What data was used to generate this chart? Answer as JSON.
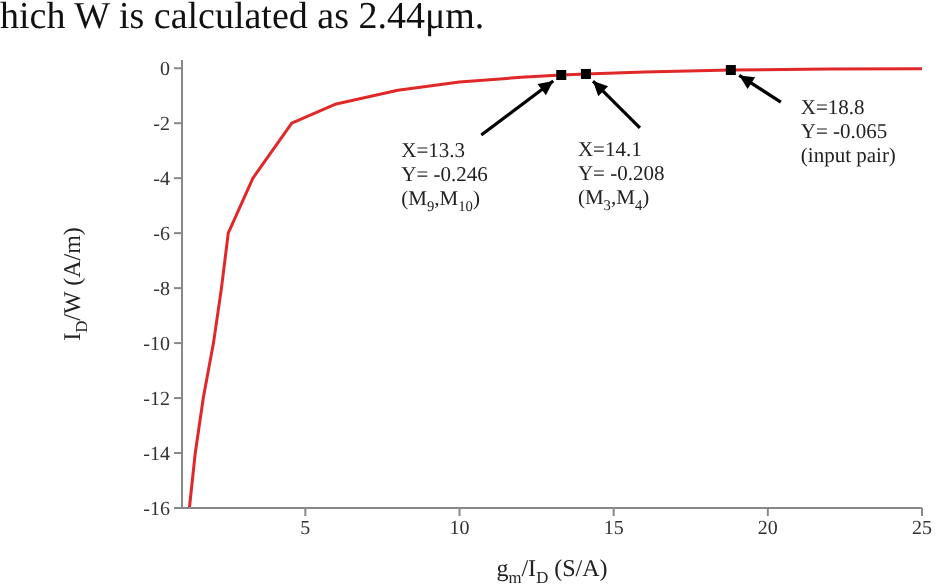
{
  "chart_data": {
    "type": "line",
    "xlabel": "g$_{m}$/I$_{D}$  (S/A)",
    "ylabel": "I$_{D}$/W  (A/m)",
    "annotations": [
      "hich W is calculated as 2.44μm.",
      {
        "text": "X=13.3\nY= -0.246\n(M$_{9}$,M$_{10}$)",
        "x": 13.3,
        "y": -0.246
      },
      {
        "text": "X=14.1\nY= -0.208\n(M$_{3}$,M$_{4}$)",
        "x": 14.1,
        "y": -0.208
      },
      {
        "text": "X=18.8\nY= -0.065\n(input pair)",
        "x": 18.8,
        "y": -0.065
      }
    ],
    "series": [
      {
        "color": "#e02828",
        "x": [
          1.24,
          1.43,
          1.69,
          2.02,
          2.28,
          2.5,
          3.3,
          4.56,
          6,
          8,
          10,
          12,
          13.3,
          14.1,
          16,
          18.8,
          22,
          25
        ],
        "values": [
          -16,
          -14,
          -12,
          -10,
          -8,
          -6,
          -4,
          -2,
          -1.3,
          -0.8,
          -0.5,
          -0.33,
          -0.246,
          -0.208,
          -0.14,
          -0.065,
          -0.03,
          -0.02
        ]
      },
      {
        "type": "scatter",
        "color": "#000000",
        "marker": "square",
        "x": [
          13.3,
          14.1,
          18.8
        ],
        "values": [
          -0.246,
          -0.208,
          -0.065
        ]
      }
    ],
    "xlim": [
      1,
      25
    ],
    "xticks": [
      5,
      10,
      15,
      20,
      25
    ],
    "ylim": [
      -16,
      0.3
    ],
    "yticks": [
      -16,
      -14,
      -12,
      -10,
      -8,
      -6,
      -4,
      -2,
      0
    ],
    "grid": false,
    "legend": false
  }
}
